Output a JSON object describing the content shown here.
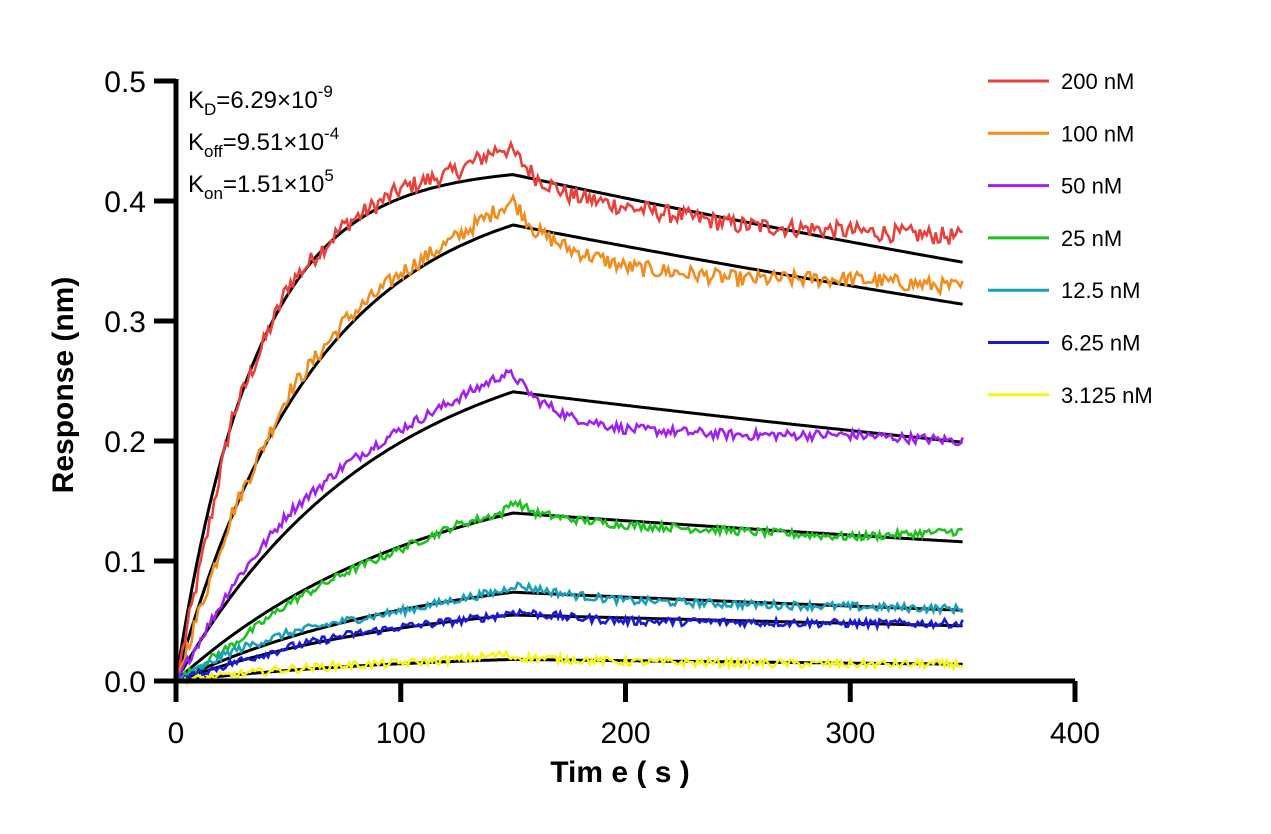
{
  "chart_data": {
    "type": "line",
    "title": "",
    "xlabel": "Tim e ( s )",
    "ylabel": "Response (nm)",
    "xlim": [
      0,
      400
    ],
    "ylim": [
      0,
      0.5
    ],
    "x_ticks": [
      0,
      100,
      200,
      300,
      400
    ],
    "x_tick_labels": [
      "0",
      "100",
      "200",
      "300",
      "400"
    ],
    "y_ticks": [
      0.0,
      0.1,
      0.2,
      0.3,
      0.4,
      0.5
    ],
    "y_tick_labels": [
      "0.0",
      "0.1",
      "0.2",
      "0.3",
      "0.4",
      "0.5"
    ],
    "grid": false,
    "legend_position": "right",
    "association_end_s": 150,
    "x_end_s": 350,
    "annotations": {
      "kd": {
        "base": "K",
        "sub": "D",
        "text": "=6.29×10",
        "sup": "-9"
      },
      "koff": {
        "base": "K",
        "sub": "off",
        "text": "=9.51×10",
        "sup": "-4"
      },
      "kon": {
        "base": "K",
        "sub": "on",
        "text": "=1.51×10",
        "sup": "5"
      }
    },
    "series": [
      {
        "name": "200 nM",
        "color": "#e8413c",
        "fit_plateau": 0.422,
        "fit_end": 0.349,
        "observed": [
          [
            0,
            0
          ],
          [
            25,
            0.22
          ],
          [
            50,
            0.33
          ],
          [
            75,
            0.38
          ],
          [
            100,
            0.41
          ],
          [
            125,
            0.425
          ],
          [
            145,
            0.445
          ],
          [
            150,
            0.44
          ],
          [
            160,
            0.42
          ],
          [
            175,
            0.405
          ],
          [
            200,
            0.395
          ],
          [
            250,
            0.38
          ],
          [
            300,
            0.375
          ],
          [
            350,
            0.37
          ]
        ]
      },
      {
        "name": "100 nM",
        "color": "#f28c1c",
        "fit_plateau": 0.38,
        "fit_end": 0.314,
        "observed": [
          [
            0,
            0
          ],
          [
            25,
            0.14
          ],
          [
            50,
            0.24
          ],
          [
            75,
            0.3
          ],
          [
            100,
            0.34
          ],
          [
            125,
            0.37
          ],
          [
            145,
            0.395
          ],
          [
            150,
            0.4
          ],
          [
            160,
            0.375
          ],
          [
            175,
            0.36
          ],
          [
            200,
            0.345
          ],
          [
            250,
            0.335
          ],
          [
            300,
            0.335
          ],
          [
            350,
            0.328
          ]
        ]
      },
      {
        "name": "50 nM",
        "color": "#a020f0",
        "fit_plateau": 0.241,
        "fit_end": 0.199,
        "observed": [
          [
            0,
            0
          ],
          [
            25,
            0.08
          ],
          [
            50,
            0.14
          ],
          [
            75,
            0.18
          ],
          [
            100,
            0.21
          ],
          [
            125,
            0.235
          ],
          [
            145,
            0.255
          ],
          [
            150,
            0.255
          ],
          [
            160,
            0.235
          ],
          [
            175,
            0.22
          ],
          [
            200,
            0.21
          ],
          [
            250,
            0.205
          ],
          [
            300,
            0.205
          ],
          [
            350,
            0.2
          ]
        ]
      },
      {
        "name": "25 nM",
        "color": "#1ec21e",
        "fit_plateau": 0.14,
        "fit_end": 0.116,
        "observed": [
          [
            0,
            0
          ],
          [
            25,
            0.03
          ],
          [
            50,
            0.065
          ],
          [
            75,
            0.09
          ],
          [
            100,
            0.11
          ],
          [
            125,
            0.13
          ],
          [
            145,
            0.14
          ],
          [
            150,
            0.15
          ],
          [
            160,
            0.14
          ],
          [
            175,
            0.135
          ],
          [
            200,
            0.13
          ],
          [
            250,
            0.125
          ],
          [
            300,
            0.12
          ],
          [
            350,
            0.125
          ]
        ]
      },
      {
        "name": "12.5 nM",
        "color": "#1aa0b8",
        "fit_plateau": 0.074,
        "fit_end": 0.059,
        "observed": [
          [
            0,
            0
          ],
          [
            25,
            0.025
          ],
          [
            50,
            0.04
          ],
          [
            75,
            0.05
          ],
          [
            100,
            0.058
          ],
          [
            125,
            0.068
          ],
          [
            145,
            0.075
          ],
          [
            150,
            0.08
          ],
          [
            175,
            0.072
          ],
          [
            200,
            0.067
          ],
          [
            250,
            0.064
          ],
          [
            300,
            0.062
          ],
          [
            350,
            0.06
          ]
        ]
      },
      {
        "name": "6.25 nM",
        "color": "#1a1ad6",
        "fit_plateau": 0.055,
        "fit_end": 0.046,
        "observed": [
          [
            0,
            0
          ],
          [
            25,
            0.015
          ],
          [
            50,
            0.028
          ],
          [
            75,
            0.038
          ],
          [
            100,
            0.045
          ],
          [
            125,
            0.05
          ],
          [
            145,
            0.055
          ],
          [
            150,
            0.058
          ],
          [
            175,
            0.053
          ],
          [
            200,
            0.05
          ],
          [
            250,
            0.049
          ],
          [
            300,
            0.048
          ],
          [
            350,
            0.048
          ]
        ]
      },
      {
        "name": "3.125 nM",
        "color": "#f5f51a",
        "fit_plateau": 0.018,
        "fit_end": 0.014,
        "observed": [
          [
            0,
            0
          ],
          [
            25,
            0.005
          ],
          [
            50,
            0.01
          ],
          [
            75,
            0.013
          ],
          [
            100,
            0.015
          ],
          [
            125,
            0.018
          ],
          [
            145,
            0.022
          ],
          [
            150,
            0.02
          ],
          [
            175,
            0.018
          ],
          [
            200,
            0.016
          ],
          [
            250,
            0.015
          ],
          [
            300,
            0.014
          ],
          [
            350,
            0.014
          ]
        ]
      }
    ]
  }
}
